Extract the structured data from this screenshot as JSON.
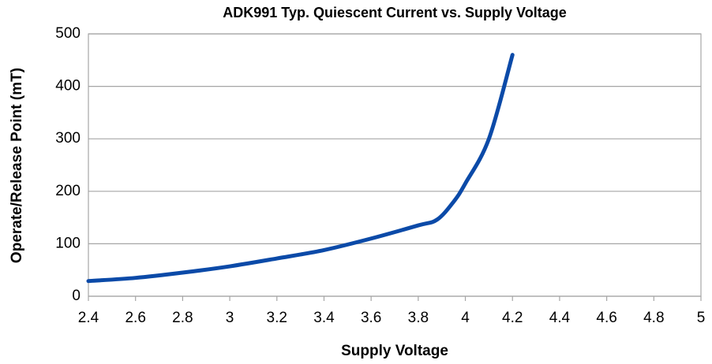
{
  "chart_data": {
    "type": "line",
    "title": "ADK991 Typ. Quiescent Current  vs. Supply Voltage",
    "x_label": "Supply Voltage",
    "y_label": "Operate/Release Point (mT)",
    "x": [
      2.4,
      2.6,
      2.8,
      3.0,
      3.2,
      3.4,
      3.6,
      3.8,
      3.88,
      3.95,
      4.0,
      4.1,
      4.2
    ],
    "series": [
      {
        "name": "Quiescent Current",
        "color": "#0b4aa8",
        "values": [
          29,
          35,
          45,
          57,
          72,
          88,
          110,
          135,
          146,
          180,
          215,
          300,
          460
        ]
      }
    ],
    "xlim": [
      2.4,
      5
    ],
    "xticks": [
      2.4,
      2.6,
      2.8,
      3,
      3.2,
      3.4,
      3.6,
      3.8,
      4,
      4.2,
      4.4,
      4.6,
      4.8,
      5
    ],
    "ylim": [
      0,
      500
    ],
    "yticks": [
      0,
      100,
      200,
      300,
      400,
      500
    ],
    "grid": true
  }
}
